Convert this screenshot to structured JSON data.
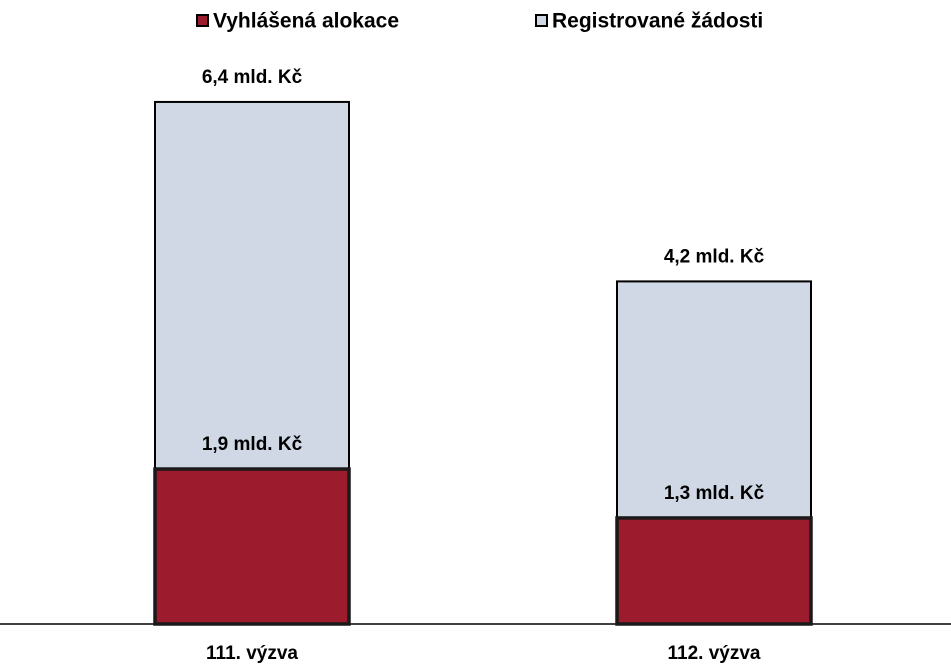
{
  "chart_data": {
    "type": "bar",
    "overlap": true,
    "categories": [
      "111. výzva",
      "112. výzva"
    ],
    "series": [
      {
        "name": "Registrované žádosti",
        "color": "#d0d8e6",
        "values": [
          6.4,
          4.2
        ],
        "value_labels": [
          "6,4  mld. Kč",
          "4,2  mld. Kč"
        ]
      },
      {
        "name": "Vyhlášená alokace",
        "color": "#9c1c2e",
        "values": [
          1.9,
          1.3
        ],
        "value_labels": [
          "1,9  mld. Kč",
          "1,3  mld. Kč"
        ]
      }
    ],
    "legend_order": [
      1,
      0
    ],
    "ylim": [
      0,
      7
    ]
  }
}
